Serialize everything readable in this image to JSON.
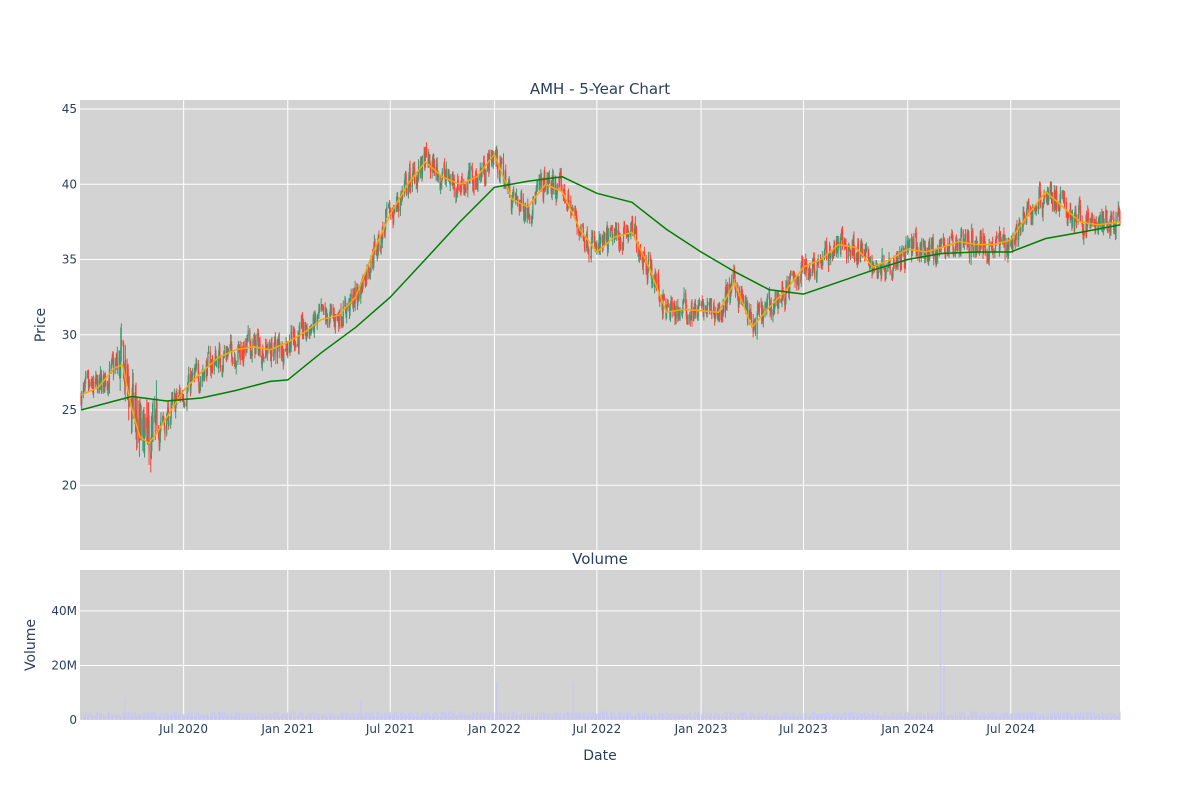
{
  "chart_data": [
    {
      "type": "line",
      "title": "AMH - 5-Year Chart",
      "ylabel": "Price",
      "ylim": [
        15.7,
        45.6
      ],
      "y_ticks": [
        20,
        25,
        30,
        35,
        40,
        45
      ],
      "x_range": [
        "2019-12-31",
        "2025-01-10"
      ],
      "grid": true,
      "background": "#d3d3d3",
      "candle_up_color": "#3d9970",
      "candle_down_color": "#ff4136",
      "series": [
        {
          "color": "#ffa500",
          "x": [
            "2020-01-02",
            "2020-02-01",
            "2020-03-01",
            "2020-03-15",
            "2020-04-01",
            "2020-04-15",
            "2020-05-01",
            "2020-05-15",
            "2020-06-01",
            "2020-07-01",
            "2020-08-01",
            "2020-09-01",
            "2020-10-01",
            "2020-11-01",
            "2020-12-01",
            "2021-01-01",
            "2021-02-01",
            "2021-03-01",
            "2021-04-01",
            "2021-05-01",
            "2021-06-01",
            "2021-07-01",
            "2021-08-01",
            "2021-09-01",
            "2021-10-01",
            "2021-11-01",
            "2021-12-01",
            "2022-01-01",
            "2022-02-01",
            "2022-03-01",
            "2022-04-01",
            "2022-05-01",
            "2022-06-01",
            "2022-07-01",
            "2022-08-01",
            "2022-09-01",
            "2022-10-01",
            "2022-11-01",
            "2022-12-01",
            "2023-01-01",
            "2023-02-01",
            "2023-03-01",
            "2023-04-01",
            "2023-05-01",
            "2023-06-01",
            "2023-07-01",
            "2023-08-01",
            "2023-09-01",
            "2023-10-01",
            "2023-11-01",
            "2023-12-01",
            "2024-01-01",
            "2024-02-01",
            "2024-03-01",
            "2024-04-01",
            "2024-05-01",
            "2024-06-01",
            "2024-07-01",
            "2024-08-01",
            "2024-09-01",
            "2024-10-01",
            "2024-11-01",
            "2024-12-01",
            "2025-01-10"
          ],
          "values": [
            26.0,
            26.5,
            27.8,
            28.0,
            25.0,
            23.2,
            22.8,
            23.5,
            24.5,
            26.3,
            27.5,
            28.5,
            29.0,
            29.2,
            29.0,
            29.5,
            30.2,
            31.0,
            31.3,
            32.5,
            35.5,
            38.0,
            40.0,
            41.5,
            40.5,
            40.0,
            40.5,
            42.0,
            39.0,
            38.5,
            40.0,
            39.5,
            37.0,
            35.5,
            36.5,
            36.8,
            34.5,
            31.5,
            31.7,
            31.6,
            31.5,
            33.5,
            30.5,
            31.8,
            33.0,
            34.5,
            35.0,
            36.0,
            35.8,
            34.5,
            35.0,
            35.7,
            35.5,
            35.8,
            36.2,
            36.0,
            36.0,
            36.3,
            38.0,
            39.5,
            38.5,
            37.5,
            37.3,
            37.5
          ]
        },
        {
          "color": "#008000",
          "x": [
            "2020-01-02",
            "2020-03-01",
            "2020-04-01",
            "2020-06-01",
            "2020-08-01",
            "2020-10-01",
            "2020-12-01",
            "2021-01-01",
            "2021-03-01",
            "2021-05-01",
            "2021-07-01",
            "2021-09-01",
            "2021-11-01",
            "2022-01-01",
            "2022-03-01",
            "2022-05-01",
            "2022-07-01",
            "2022-09-01",
            "2022-11-01",
            "2023-01-01",
            "2023-03-01",
            "2023-05-01",
            "2023-07-01",
            "2023-09-01",
            "2023-11-01",
            "2024-01-01",
            "2024-03-01",
            "2024-05-01",
            "2024-07-01",
            "2024-09-01",
            "2024-11-01",
            "2025-01-10"
          ],
          "values": [
            25.0,
            25.6,
            25.9,
            25.6,
            25.8,
            26.3,
            26.9,
            27.0,
            28.8,
            30.5,
            32.5,
            35.0,
            37.5,
            39.8,
            40.2,
            40.5,
            39.4,
            38.8,
            37.0,
            35.5,
            34.2,
            33.0,
            32.7,
            33.5,
            34.3,
            35.0,
            35.4,
            35.5,
            35.5,
            36.4,
            36.8,
            37.3
          ]
        }
      ]
    },
    {
      "type": "bar",
      "title": "Volume",
      "xlabel": "Date",
      "ylabel": "Volume",
      "ylim": [
        0,
        55000000
      ],
      "y_ticks": [
        "0",
        "20M",
        "40M"
      ],
      "x_ticks": [
        "Jul 2020",
        "Jan 2021",
        "Jul 2021",
        "Jan 2022",
        "Jul 2022",
        "Jan 2023",
        "Jul 2023",
        "Jan 2024",
        "Jul 2024"
      ],
      "bar_color": "#c8c8f0",
      "baseline": 2000000,
      "spikes": [
        {
          "date": "2020-03-20",
          "value": 8000000
        },
        {
          "date": "2021-05-10",
          "value": 7000000
        },
        {
          "date": "2022-01-05",
          "value": 14000000
        },
        {
          "date": "2022-05-20",
          "value": 14000000
        },
        {
          "date": "2024-02-28",
          "value": 55000000
        },
        {
          "date": "2024-03-05",
          "value": 20000000
        }
      ]
    }
  ]
}
